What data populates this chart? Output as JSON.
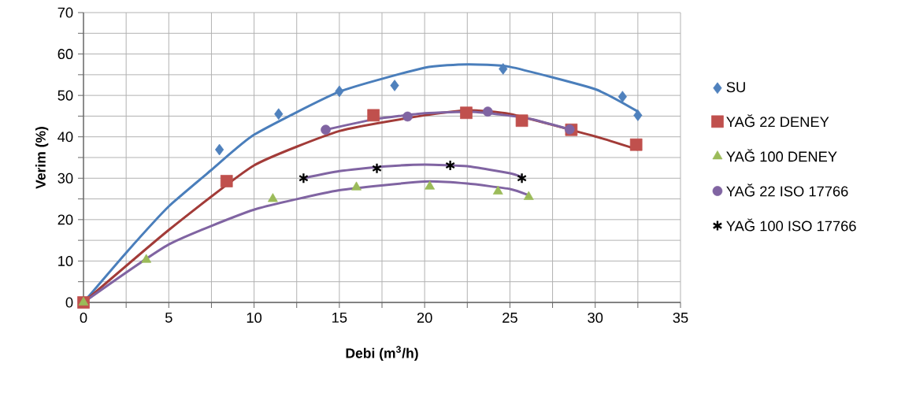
{
  "chart_data": {
    "type": "scatter",
    "xlabel": "Debi (m$^{3}$/h)",
    "ylabel": "Verim (%)",
    "xlim": [
      0,
      35
    ],
    "ylim": [
      0,
      70
    ],
    "xticks": [
      0,
      {
        "value": 2.5,
        "label": null
      },
      5,
      {
        "value": 7.5,
        "label": null
      },
      10,
      {
        "value": 12.5,
        "label": null
      },
      15,
      {
        "value": 17.5,
        "label": null
      },
      20,
      {
        "value": 22.5,
        "label": null
      },
      25,
      {
        "value": 27.5,
        "label": null
      },
      30,
      {
        "value": 32.5,
        "label": null
      },
      35
    ],
    "yticks": [
      0,
      {
        "value": 5,
        "label": null
      },
      10,
      {
        "value": 15,
        "label": null
      },
      20,
      {
        "value": 25,
        "label": null
      },
      30,
      {
        "value": 35,
        "label": null
      },
      40,
      {
        "value": 45,
        "label": null
      },
      50,
      {
        "value": 55,
        "label": null
      },
      60,
      {
        "value": 65,
        "label": null
      },
      70
    ],
    "grid": true,
    "legend": "right",
    "series": [
      {
        "type": "line",
        "color": "#4a7ebb",
        "marker": "none",
        "x": [
          0,
          2.5,
          5,
          7.5,
          10,
          15,
          20,
          22.5,
          25,
          30,
          32.5
        ],
        "values": [
          0,
          12,
          23.2,
          32,
          40.5,
          50.9,
          56.7,
          57.5,
          56.9,
          51.5,
          46.1
        ]
      },
      {
        "type": "line",
        "color": "#a23b38",
        "marker": "none",
        "x": [
          0,
          5,
          10,
          15,
          20,
          22.5,
          25,
          30,
          32.5
        ],
        "values": [
          0,
          17.5,
          33.1,
          41.4,
          45.2,
          46.4,
          45.5,
          40.1,
          36.9
        ]
      },
      {
        "type": "line",
        "color": "#8064a2",
        "marker": "none",
        "x": [
          0,
          5,
          10,
          15,
          20,
          22.5,
          25,
          26.1
        ],
        "values": [
          0,
          14,
          22.4,
          27.1,
          29.2,
          28.7,
          27.4,
          25.9
        ]
      },
      {
        "type": "line",
        "color": "#8064a2",
        "marker": "none",
        "x": [
          14.2,
          17,
          20,
          23,
          26,
          28.5
        ],
        "values": [
          41.7,
          44.2,
          45.7,
          46,
          44.5,
          41.8
        ]
      },
      {
        "type": "line",
        "color": "#8064a2",
        "marker": "none",
        "x": [
          12.9,
          15,
          17.5,
          20,
          22.5,
          25,
          25.7
        ],
        "values": [
          30,
          31.7,
          32.8,
          33.3,
          32.9,
          31.2,
          30.3
        ]
      },
      {
        "name": "SU",
        "color": "#4f81bd",
        "marker": "diamond",
        "x": [
          7.97,
          11.44,
          15.0,
          18.24,
          24.6,
          31.6,
          32.5
        ],
        "values": [
          36.9,
          45.5,
          51.0,
          52.4,
          56.4,
          49.7,
          45.2
        ]
      },
      {
        "name": "YAĞ 22 DENEY",
        "color": "#c0504d",
        "marker": "square",
        "x": [
          0,
          8.39,
          17.0,
          22.44,
          25.7,
          28.6,
          32.4
        ],
        "values": [
          0,
          29.3,
          45.2,
          45.8,
          43.9,
          41.7,
          38.1
        ]
      },
      {
        "name": "YAĞ 100 DENEY",
        "color": "#9bbb59",
        "marker": "triangle",
        "x": [
          0,
          3.68,
          11.1,
          16.0,
          20.3,
          24.3,
          26.1
        ],
        "values": [
          0,
          10.3,
          25.0,
          27.8,
          28.0,
          26.8,
          25.5
        ]
      },
      {
        "name": "YAĞ 22 ISO 17766",
        "color": "#8064a2",
        "marker": "circle",
        "x": [
          14.2,
          19.0,
          23.7,
          28.5
        ],
        "values": [
          41.7,
          44.9,
          46.1,
          41.8
        ]
      },
      {
        "name": "YAĞ 100 ISO 17766",
        "color": "#000000",
        "marker": "cross",
        "x": [
          12.9,
          17.2,
          21.5,
          25.7
        ],
        "values": [
          30.0,
          32.4,
          33.1,
          30.0
        ]
      }
    ]
  }
}
